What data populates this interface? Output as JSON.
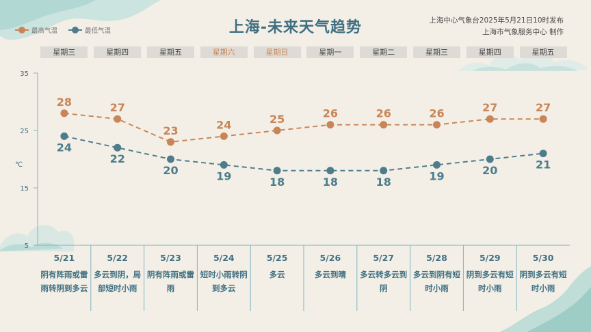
{
  "title": "上海-未来天气趋势",
  "issuer": {
    "line1": "上海中心气象台2025年5月21日10时发布",
    "line2": "上海市气象服务中心 制作"
  },
  "legend": {
    "high": "最高气温",
    "low": "最低气温"
  },
  "unit": "℃",
  "colors": {
    "high": "#c98557",
    "low": "#4d7d8c",
    "axis": "#7fb3c1",
    "text": "#3f6f82",
    "weekend": "#c98557"
  },
  "days": [
    {
      "weekday": "星期三",
      "date": "5/21",
      "condition": "阴有阵雨或雷雨转阴到多云",
      "weekend": false
    },
    {
      "weekday": "星期四",
      "date": "5/22",
      "condition": "多云到阴，局部短时小雨",
      "weekend": false
    },
    {
      "weekday": "星期五",
      "date": "5/23",
      "condition": "阴有阵雨或雷雨",
      "weekend": false
    },
    {
      "weekday": "星期六",
      "date": "5/24",
      "condition": "短时小雨转阴到多云",
      "weekend": true
    },
    {
      "weekday": "星期日",
      "date": "5/25",
      "condition": "多云",
      "weekend": true
    },
    {
      "weekday": "星期一",
      "date": "5/26",
      "condition": "多云到晴",
      "weekend": false
    },
    {
      "weekday": "星期二",
      "date": "5/27",
      "condition": "多云转多云到阴",
      "weekend": false
    },
    {
      "weekday": "星期三",
      "date": "5/28",
      "condition": "多云到阴有短时小雨",
      "weekend": false
    },
    {
      "weekday": "星期四",
      "date": "5/29",
      "condition": "阴到多云有短时小雨",
      "weekend": false
    },
    {
      "weekday": "星期五",
      "date": "5/30",
      "condition": "阴到多云有短时小雨",
      "weekend": false
    }
  ],
  "chart_data": {
    "type": "line",
    "categories": [
      "5/21",
      "5/22",
      "5/23",
      "5/24",
      "5/25",
      "5/26",
      "5/27",
      "5/28",
      "5/29",
      "5/30"
    ],
    "series": [
      {
        "name": "最高气温",
        "values": [
          28,
          27,
          23,
          24,
          25,
          26,
          26,
          26,
          27,
          27
        ],
        "color": "#c98557"
      },
      {
        "name": "最低气温",
        "values": [
          24,
          22,
          20,
          19,
          18,
          18,
          18,
          19,
          20,
          21
        ],
        "color": "#4d7d8c"
      }
    ],
    "ylim": [
      5,
      35
    ],
    "yticks": [
      5,
      15,
      25,
      35
    ],
    "ylabel": "℃",
    "grid": false,
    "legend": "top-left",
    "line_style": "dashed"
  }
}
